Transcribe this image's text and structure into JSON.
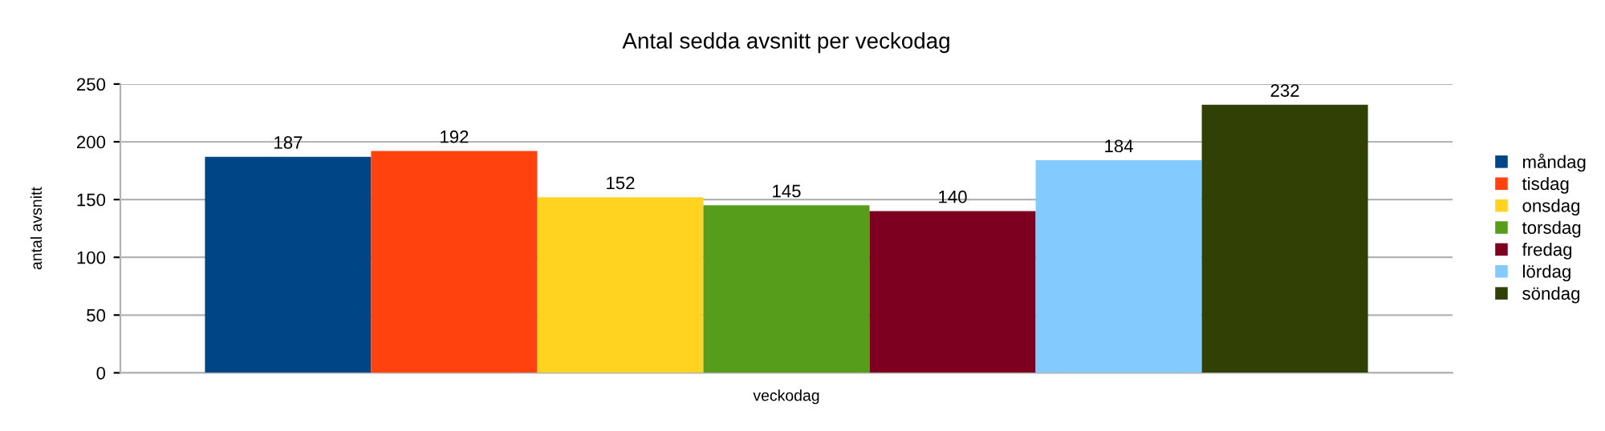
{
  "chart_data": {
    "type": "bar",
    "title": "Antal sedda avsnitt per veckodag",
    "xlabel": "veckodag",
    "ylabel": "antal avsnitt",
    "categories": [
      null
    ],
    "series": [
      {
        "name": "måndag",
        "color": "#004586",
        "values": [
          187
        ]
      },
      {
        "name": "tisdag",
        "color": "#ff420e",
        "values": [
          192
        ]
      },
      {
        "name": "onsdag",
        "color": "#ffd320",
        "values": [
          152
        ]
      },
      {
        "name": "torsdag",
        "color": "#579d1c",
        "values": [
          145
        ]
      },
      {
        "name": "fredag",
        "color": "#7e0021",
        "values": [
          140
        ]
      },
      {
        "name": "lördag",
        "color": "#83caff",
        "values": [
          184
        ]
      },
      {
        "name": "söndag",
        "color": "#314004",
        "values": [
          232
        ]
      }
    ],
    "ylim": [
      0,
      250
    ],
    "yticks": [
      0,
      50,
      100,
      150,
      200,
      250
    ],
    "grid": "y",
    "legend": "right",
    "data_labels": true
  }
}
